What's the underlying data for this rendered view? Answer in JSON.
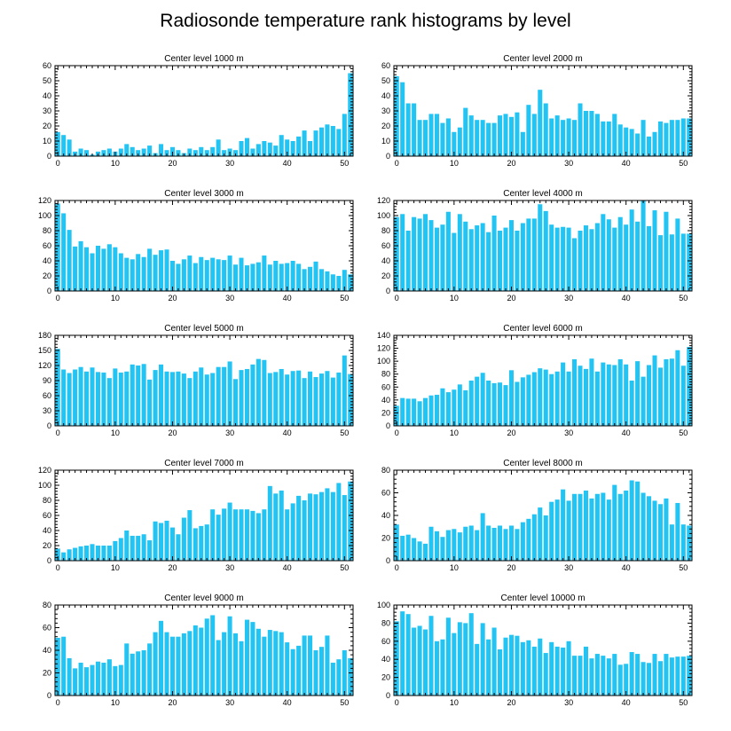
{
  "figure": {
    "title": "Radiosonde temperature rank histograms by level",
    "bar_color": "#21c4f3"
  },
  "chart_data": [
    {
      "type": "bar",
      "title": "Center level 1000 m",
      "x": [
        0,
        1,
        2,
        3,
        4,
        5,
        6,
        7,
        8,
        9,
        10,
        11,
        12,
        13,
        14,
        15,
        16,
        17,
        18,
        19,
        20,
        21,
        22,
        23,
        24,
        25,
        26,
        27,
        28,
        29,
        30,
        31,
        32,
        33,
        34,
        35,
        36,
        37,
        38,
        39,
        40,
        41,
        42,
        43,
        44,
        45,
        46,
        47,
        48,
        49,
        50,
        51
      ],
      "values": [
        16,
        14,
        11,
        3,
        5,
        4,
        1,
        3,
        4,
        5,
        3,
        5,
        8,
        6,
        4,
        5,
        7,
        2,
        8,
        4,
        6,
        4,
        2,
        5,
        4,
        6,
        4,
        6,
        11,
        4,
        5,
        4,
        10,
        12,
        5,
        8,
        10,
        9,
        7,
        14,
        11,
        10,
        13,
        17,
        10,
        17,
        19,
        21,
        20,
        18,
        28,
        55
      ],
      "xlim": [
        -0.5,
        51.5
      ],
      "ylim": [
        0,
        60
      ],
      "xticks": [
        0,
        10,
        20,
        30,
        40,
        50
      ],
      "yticks": [
        0,
        10,
        20,
        30,
        40,
        50,
        60
      ],
      "xtick_labels": [
        "0",
        "10",
        "20",
        "30",
        "40",
        "50"
      ],
      "ytick_labels": [
        "0",
        "10",
        "20",
        "30",
        "40",
        "50",
        "60"
      ]
    },
    {
      "type": "bar",
      "title": "Center level 2000 m",
      "x": [
        0,
        1,
        2,
        3,
        4,
        5,
        6,
        7,
        8,
        9,
        10,
        11,
        12,
        13,
        14,
        15,
        16,
        17,
        18,
        19,
        20,
        21,
        22,
        23,
        24,
        25,
        26,
        27,
        28,
        29,
        30,
        31,
        32,
        33,
        34,
        35,
        36,
        37,
        38,
        39,
        40,
        41,
        42,
        43,
        44,
        45,
        46,
        47,
        48,
        49,
        50,
        51
      ],
      "values": [
        53,
        49,
        35,
        35,
        24,
        24,
        28,
        28,
        22,
        25,
        16,
        19,
        32,
        27,
        24,
        24,
        22,
        22,
        27,
        28,
        26,
        29,
        16,
        34,
        28,
        44,
        35,
        25,
        27,
        24,
        25,
        24,
        35,
        30,
        30,
        28,
        23,
        23,
        28,
        21,
        19,
        18,
        15,
        24,
        13,
        16,
        23,
        22,
        24,
        24,
        25,
        25
      ],
      "xlim": [
        -0.5,
        51.5
      ],
      "ylim": [
        0,
        60
      ],
      "xticks": [
        0,
        10,
        20,
        30,
        40,
        50
      ],
      "yticks": [
        0,
        10,
        20,
        30,
        40,
        50,
        60
      ],
      "xtick_labels": [
        "0",
        "10",
        "20",
        "30",
        "40",
        "50"
      ],
      "ytick_labels": [
        "0",
        "10",
        "20",
        "30",
        "40",
        "50",
        "60"
      ]
    },
    {
      "type": "bar",
      "title": "Center level 3000 m",
      "x": [
        0,
        1,
        2,
        3,
        4,
        5,
        6,
        7,
        8,
        9,
        10,
        11,
        12,
        13,
        14,
        15,
        16,
        17,
        18,
        19,
        20,
        21,
        22,
        23,
        24,
        25,
        26,
        27,
        28,
        29,
        30,
        31,
        32,
        33,
        34,
        35,
        36,
        37,
        38,
        39,
        40,
        41,
        42,
        43,
        44,
        45,
        46,
        47,
        48,
        49,
        50,
        51
      ],
      "values": [
        116,
        103,
        81,
        59,
        66,
        58,
        50,
        60,
        56,
        62,
        58,
        50,
        44,
        42,
        49,
        45,
        56,
        48,
        54,
        55,
        40,
        36,
        42,
        47,
        37,
        45,
        41,
        44,
        42,
        41,
        47,
        35,
        44,
        34,
        36,
        38,
        47,
        35,
        40,
        36,
        37,
        40,
        36,
        29,
        32,
        39,
        29,
        26,
        22,
        20,
        28,
        22
      ],
      "xlim": [
        -0.5,
        51.5
      ],
      "ylim": [
        0,
        120
      ],
      "xticks": [
        0,
        10,
        20,
        30,
        40,
        50
      ],
      "yticks": [
        0,
        20,
        40,
        60,
        80,
        100,
        120
      ],
      "xtick_labels": [
        "0",
        "10",
        "20",
        "30",
        "40",
        "50"
      ],
      "ytick_labels": [
        "0",
        "20",
        "40",
        "60",
        "80",
        "100",
        "120"
      ]
    },
    {
      "type": "bar",
      "title": "Center level 4000 m",
      "x": [
        0,
        1,
        2,
        3,
        4,
        5,
        6,
        7,
        8,
        9,
        10,
        11,
        12,
        13,
        14,
        15,
        16,
        17,
        18,
        19,
        20,
        21,
        22,
        23,
        24,
        25,
        26,
        27,
        28,
        29,
        30,
        31,
        32,
        33,
        34,
        35,
        36,
        37,
        38,
        39,
        40,
        41,
        42,
        43,
        44,
        45,
        46,
        47,
        48,
        49,
        50,
        51
      ],
      "values": [
        98,
        102,
        80,
        98,
        96,
        102,
        94,
        84,
        88,
        105,
        77,
        102,
        92,
        82,
        87,
        90,
        78,
        100,
        80,
        84,
        94,
        80,
        90,
        96,
        96,
        115,
        106,
        88,
        84,
        85,
        84,
        70,
        80,
        87,
        82,
        90,
        102,
        95,
        84,
        98,
        88,
        108,
        92,
        120,
        86,
        107,
        74,
        105,
        75,
        96,
        76,
        76
      ],
      "xlim": [
        -0.5,
        51.5
      ],
      "ylim": [
        0,
        120
      ],
      "xticks": [
        0,
        10,
        20,
        30,
        40,
        50
      ],
      "yticks": [
        0,
        20,
        40,
        60,
        80,
        100,
        120
      ],
      "xtick_labels": [
        "0",
        "10",
        "20",
        "30",
        "40",
        "50"
      ],
      "ytick_labels": [
        "0",
        "20",
        "40",
        "60",
        "80",
        "100",
        "120"
      ]
    },
    {
      "type": "bar",
      "title": "Center level 5000 m",
      "x": [
        0,
        1,
        2,
        3,
        4,
        5,
        6,
        7,
        8,
        9,
        10,
        11,
        12,
        13,
        14,
        15,
        16,
        17,
        18,
        19,
        20,
        21,
        22,
        23,
        24,
        25,
        26,
        27,
        28,
        29,
        30,
        31,
        32,
        33,
        34,
        35,
        36,
        37,
        38,
        39,
        40,
        41,
        42,
        43,
        44,
        45,
        46,
        47,
        48,
        49,
        50,
        51
      ],
      "values": [
        153,
        112,
        105,
        112,
        117,
        108,
        116,
        107,
        106,
        95,
        114,
        106,
        108,
        122,
        120,
        123,
        92,
        111,
        122,
        108,
        107,
        108,
        104,
        95,
        108,
        116,
        102,
        105,
        117,
        117,
        128,
        93,
        111,
        113,
        122,
        133,
        131,
        105,
        107,
        113,
        102,
        109,
        110,
        95,
        108,
        97,
        104,
        109,
        96,
        106,
        140,
        103
      ],
      "xlim": [
        -0.5,
        51.5
      ],
      "ylim": [
        0,
        180
      ],
      "xticks": [
        0,
        10,
        20,
        30,
        40,
        50
      ],
      "yticks": [
        0,
        30,
        60,
        90,
        120,
        150,
        180
      ],
      "xtick_labels": [
        "0",
        "10",
        "20",
        "30",
        "40",
        "50"
      ],
      "ytick_labels": [
        "0",
        "30",
        "60",
        "90",
        "120",
        "150",
        "180"
      ]
    },
    {
      "type": "bar",
      "title": "Center level 6000 m",
      "x": [
        0,
        1,
        2,
        3,
        4,
        5,
        6,
        7,
        8,
        9,
        10,
        11,
        12,
        13,
        14,
        15,
        16,
        17,
        18,
        19,
        20,
        21,
        22,
        23,
        24,
        25,
        26,
        27,
        28,
        29,
        30,
        31,
        32,
        33,
        34,
        35,
        36,
        37,
        38,
        39,
        40,
        41,
        42,
        43,
        44,
        45,
        46,
        47,
        48,
        49,
        50,
        51
      ],
      "values": [
        31,
        43,
        42,
        42,
        38,
        43,
        47,
        48,
        58,
        52,
        56,
        64,
        55,
        70,
        76,
        82,
        70,
        66,
        67,
        63,
        86,
        68,
        75,
        79,
        83,
        89,
        87,
        80,
        84,
        98,
        84,
        103,
        93,
        88,
        104,
        84,
        98,
        95,
        94,
        103,
        95,
        70,
        100,
        76,
        94,
        109,
        90,
        103,
        104,
        117,
        93,
        122
      ],
      "xlim": [
        -0.5,
        51.5
      ],
      "ylim": [
        0,
        140
      ],
      "xticks": [
        0,
        10,
        20,
        30,
        40,
        50
      ],
      "yticks": [
        0,
        20,
        40,
        60,
        80,
        100,
        120,
        140
      ],
      "xtick_labels": [
        "0",
        "10",
        "20",
        "30",
        "40",
        "50"
      ],
      "ytick_labels": [
        "0",
        "20",
        "40",
        "60",
        "80",
        "100",
        "120",
        "140"
      ]
    },
    {
      "type": "bar",
      "title": "Center level 7000 m",
      "x": [
        0,
        1,
        2,
        3,
        4,
        5,
        6,
        7,
        8,
        9,
        10,
        11,
        12,
        13,
        14,
        15,
        16,
        17,
        18,
        19,
        20,
        21,
        22,
        23,
        24,
        25,
        26,
        27,
        28,
        29,
        30,
        31,
        32,
        33,
        34,
        35,
        36,
        37,
        38,
        39,
        40,
        41,
        42,
        43,
        44,
        45,
        46,
        47,
        48,
        49,
        50,
        51
      ],
      "values": [
        16,
        11,
        15,
        17,
        19,
        20,
        22,
        20,
        20,
        20,
        26,
        30,
        40,
        33,
        33,
        35,
        27,
        52,
        50,
        53,
        44,
        35,
        57,
        67,
        43,
        46,
        48,
        68,
        61,
        69,
        77,
        68,
        68,
        68,
        66,
        63,
        68,
        99,
        89,
        93,
        68,
        76,
        86,
        80,
        89,
        88,
        91,
        96,
        91,
        103,
        87,
        105
      ],
      "xlim": [
        -0.5,
        51.5
      ],
      "ylim": [
        0,
        120
      ],
      "xticks": [
        0,
        10,
        20,
        30,
        40,
        50
      ],
      "yticks": [
        0,
        20,
        40,
        60,
        80,
        100,
        120
      ],
      "xtick_labels": [
        "0",
        "10",
        "20",
        "30",
        "40",
        "50"
      ],
      "ytick_labels": [
        "0",
        "20",
        "40",
        "60",
        "80",
        "100",
        "120"
      ]
    },
    {
      "type": "bar",
      "title": "Center level 8000 m",
      "x": [
        0,
        1,
        2,
        3,
        4,
        5,
        6,
        7,
        8,
        9,
        10,
        11,
        12,
        13,
        14,
        15,
        16,
        17,
        18,
        19,
        20,
        21,
        22,
        23,
        24,
        25,
        26,
        27,
        28,
        29,
        30,
        31,
        32,
        33,
        34,
        35,
        36,
        37,
        38,
        39,
        40,
        41,
        42,
        43,
        44,
        45,
        46,
        47,
        48,
        49,
        50,
        51
      ],
      "values": [
        32,
        22,
        23,
        20,
        17,
        15,
        30,
        26,
        21,
        27,
        28,
        25,
        30,
        31,
        27,
        42,
        31,
        29,
        31,
        28,
        31,
        28,
        34,
        37,
        41,
        47,
        40,
        52,
        54,
        63,
        53,
        59,
        59,
        62,
        55,
        59,
        60,
        54,
        67,
        59,
        62,
        71,
        70,
        60,
        57,
        53,
        50,
        55,
        32,
        51,
        32,
        31
      ],
      "xlim": [
        -0.5,
        51.5
      ],
      "ylim": [
        0,
        80
      ],
      "xticks": [
        0,
        10,
        20,
        30,
        40,
        50
      ],
      "yticks": [
        0,
        20,
        40,
        60,
        80
      ],
      "xtick_labels": [
        "0",
        "10",
        "20",
        "30",
        "40",
        "50"
      ],
      "ytick_labels": [
        "0",
        "20",
        "40",
        "60",
        "80"
      ]
    },
    {
      "type": "bar",
      "title": "Center level 9000 m",
      "x": [
        0,
        1,
        2,
        3,
        4,
        5,
        6,
        7,
        8,
        9,
        10,
        11,
        12,
        13,
        14,
        15,
        16,
        17,
        18,
        19,
        20,
        21,
        22,
        23,
        24,
        25,
        26,
        27,
        28,
        29,
        30,
        31,
        32,
        33,
        34,
        35,
        36,
        37,
        38,
        39,
        40,
        41,
        42,
        43,
        44,
        45,
        46,
        47,
        48,
        49,
        50,
        51
      ],
      "values": [
        51,
        52,
        33,
        24,
        29,
        25,
        27,
        30,
        29,
        32,
        26,
        27,
        46,
        37,
        39,
        40,
        46,
        56,
        66,
        56,
        52,
        52,
        55,
        57,
        62,
        60,
        68,
        71,
        49,
        56,
        70,
        55,
        48,
        67,
        65,
        59,
        52,
        58,
        57,
        56,
        47,
        41,
        44,
        53,
        53,
        40,
        43,
        53,
        29,
        32,
        40,
        33
      ],
      "xlim": [
        -0.5,
        51.5
      ],
      "ylim": [
        0,
        80
      ],
      "xticks": [
        0,
        10,
        20,
        30,
        40,
        50
      ],
      "yticks": [
        0,
        20,
        40,
        60,
        80
      ],
      "xtick_labels": [
        "0",
        "10",
        "20",
        "30",
        "40",
        "50"
      ],
      "ytick_labels": [
        "0",
        "20",
        "40",
        "60",
        "80"
      ]
    },
    {
      "type": "bar",
      "title": "Center level 10000 m",
      "x": [
        0,
        1,
        2,
        3,
        4,
        5,
        6,
        7,
        8,
        9,
        10,
        11,
        12,
        13,
        14,
        15,
        16,
        17,
        18,
        19,
        20,
        21,
        22,
        23,
        24,
        25,
        26,
        27,
        28,
        29,
        30,
        31,
        32,
        33,
        34,
        35,
        36,
        37,
        38,
        39,
        40,
        41,
        42,
        43,
        44,
        45,
        46,
        47,
        48,
        49,
        50,
        51
      ],
      "values": [
        82,
        93,
        90,
        75,
        77,
        73,
        88,
        60,
        62,
        86,
        69,
        81,
        80,
        91,
        57,
        80,
        62,
        75,
        51,
        64,
        67,
        66,
        59,
        61,
        54,
        63,
        47,
        59,
        54,
        53,
        60,
        44,
        44,
        54,
        41,
        46,
        44,
        41,
        46,
        34,
        35,
        48,
        46,
        37,
        36,
        46,
        38,
        46,
        42,
        43,
        43,
        44
      ],
      "xlim": [
        -0.5,
        51.5
      ],
      "ylim": [
        0,
        100
      ],
      "xticks": [
        0,
        10,
        20,
        30,
        40,
        50
      ],
      "yticks": [
        0,
        20,
        40,
        60,
        80,
        100
      ],
      "xtick_labels": [
        "0",
        "10",
        "20",
        "30",
        "40",
        "50"
      ],
      "ytick_labels": [
        "0",
        "20",
        "40",
        "60",
        "80",
        "100"
      ]
    }
  ]
}
